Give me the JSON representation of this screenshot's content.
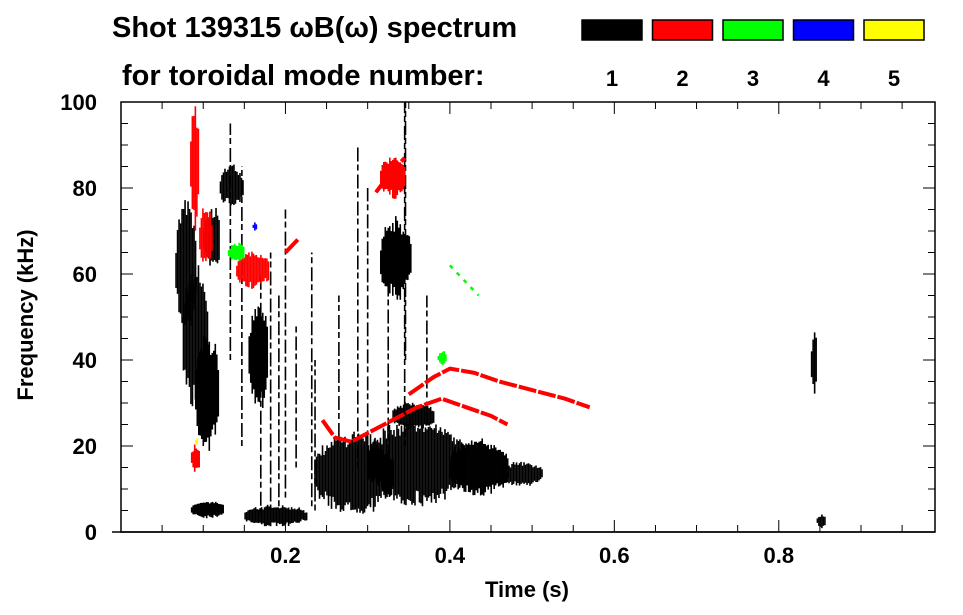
{
  "chart_data": {
    "type": "heatmap",
    "title": "Shot 139315 ωB(ω) spectrum",
    "subtitle": "for toroidal mode number:",
    "xlabel": "Time (s)",
    "ylabel": "Frequency (kHz)",
    "xlim": [
      0,
      0.99
    ],
    "ylim": [
      0,
      100
    ],
    "xticks": [
      0.2,
      0.4,
      0.6,
      0.8
    ],
    "xtick_labels": [
      "0.2",
      "0.4",
      "0.6",
      "0.8"
    ],
    "yticks": [
      0,
      20,
      40,
      60,
      80,
      100
    ],
    "ytick_labels": [
      "0",
      "20",
      "40",
      "60",
      "80",
      "100"
    ],
    "legend": [
      {
        "mode": "1",
        "color": "#000000"
      },
      {
        "mode": "2",
        "color": "#ff0000"
      },
      {
        "mode": "3",
        "color": "#00ff00"
      },
      {
        "mode": "4",
        "color": "#0000ff"
      },
      {
        "mode": "5",
        "color": "#ffff00"
      }
    ],
    "blobs": [
      {
        "mode": 1,
        "t": [
          0.066,
          0.09
        ],
        "f": [
          48,
          76
        ]
      },
      {
        "mode": 1,
        "t": [
          0.075,
          0.105
        ],
        "f": [
          30,
          60
        ]
      },
      {
        "mode": 1,
        "t": [
          0.09,
          0.118
        ],
        "f": [
          20,
          45
        ]
      },
      {
        "mode": 1,
        "t": [
          0.12,
          0.148
        ],
        "f": [
          76,
          85
        ]
      },
      {
        "mode": 1,
        "t": [
          0.1,
          0.12
        ],
        "f": [
          62,
          75
        ]
      },
      {
        "mode": 1,
        "t": [
          0.155,
          0.178
        ],
        "f": [
          30,
          52
        ]
      },
      {
        "mode": 1,
        "t": [
          0.15,
          0.225
        ],
        "f": [
          1.5,
          6
        ]
      },
      {
        "mode": 1,
        "t": [
          0.085,
          0.125
        ],
        "f": [
          3.5,
          7
        ]
      },
      {
        "mode": 1,
        "t": [
          0.235,
          0.33
        ],
        "f": [
          5,
          22
        ]
      },
      {
        "mode": 1,
        "t": [
          0.3,
          0.42
        ],
        "f": [
          7,
          25
        ]
      },
      {
        "mode": 1,
        "t": [
          0.4,
          0.47
        ],
        "f": [
          9,
          21
        ]
      },
      {
        "mode": 1,
        "t": [
          0.46,
          0.512
        ],
        "f": [
          11,
          16
        ]
      },
      {
        "mode": 1,
        "t": [
          0.33,
          0.38
        ],
        "f": [
          24,
          30
        ]
      },
      {
        "mode": 1,
        "t": [
          0.315,
          0.352
        ],
        "f": [
          55,
          72
        ]
      },
      {
        "mode": 1,
        "t": [
          0.839,
          0.846
        ],
        "f": [
          32,
          47
        ]
      },
      {
        "mode": 1,
        "t": [
          0.846,
          0.856
        ],
        "f": [
          1,
          4
        ]
      },
      {
        "mode": 2,
        "t": [
          0.084,
          0.094
        ],
        "f": [
          70,
          100
        ]
      },
      {
        "mode": 2,
        "t": [
          0.095,
          0.11
        ],
        "f": [
          62,
          75
        ]
      },
      {
        "mode": 2,
        "t": [
          0.14,
          0.18
        ],
        "f": [
          57,
          65
        ]
      },
      {
        "mode": 2,
        "t": [
          0.315,
          0.345
        ],
        "f": [
          78,
          87
        ]
      },
      {
        "mode": 2,
        "t": [
          0.085,
          0.095
        ],
        "f": [
          14,
          20
        ]
      },
      {
        "mode": 3,
        "t": [
          0.13,
          0.15
        ],
        "f": [
          63,
          67
        ]
      },
      {
        "mode": 3,
        "t": [
          0.385,
          0.395
        ],
        "f": [
          39,
          42
        ]
      },
      {
        "mode": 4,
        "t": [
          0.16,
          0.164
        ],
        "f": [
          70,
          72
        ]
      },
      {
        "mode": 5,
        "t": [
          0.09,
          0.093
        ],
        "f": [
          20,
          22
        ]
      }
    ],
    "tracks": [
      {
        "mode": 2,
        "points": [
          [
            0.245,
            26
          ],
          [
            0.26,
            22
          ],
          [
            0.28,
            21
          ],
          [
            0.3,
            23
          ],
          [
            0.33,
            26
          ],
          [
            0.36,
            29
          ],
          [
            0.39,
            31
          ],
          [
            0.42,
            29
          ],
          [
            0.45,
            27
          ],
          [
            0.47,
            25
          ]
        ]
      },
      {
        "mode": 2,
        "points": [
          [
            0.35,
            32
          ],
          [
            0.38,
            36
          ],
          [
            0.4,
            38
          ],
          [
            0.43,
            37
          ],
          [
            0.46,
            35
          ],
          [
            0.5,
            33
          ],
          [
            0.54,
            31
          ],
          [
            0.57,
            29
          ]
        ]
      },
      {
        "mode": 2,
        "points": [
          [
            0.31,
            79
          ],
          [
            0.33,
            84
          ],
          [
            0.345,
            87
          ]
        ]
      },
      {
        "mode": 2,
        "points": [
          [
            0.2,
            65
          ],
          [
            0.215,
            68
          ]
        ]
      },
      {
        "mode": 3,
        "points": [
          [
            0.4,
            62
          ],
          [
            0.42,
            58
          ],
          [
            0.435,
            55
          ]
        ]
      }
    ],
    "streaks": [
      {
        "mode": 1,
        "t": 0.133,
        "f": [
          40,
          95
        ]
      },
      {
        "mode": 1,
        "t": 0.147,
        "f": [
          20,
          85
        ]
      },
      {
        "mode": 1,
        "t": 0.17,
        "f": [
          4,
          60
        ]
      },
      {
        "mode": 1,
        "t": 0.182,
        "f": [
          5,
          65
        ]
      },
      {
        "mode": 1,
        "t": 0.192,
        "f": [
          6,
          55
        ]
      },
      {
        "mode": 1,
        "t": 0.2,
        "f": [
          8,
          75
        ]
      },
      {
        "mode": 1,
        "t": 0.213,
        "f": [
          15,
          48
        ]
      },
      {
        "mode": 1,
        "t": 0.232,
        "f": [
          6,
          65
        ]
      },
      {
        "mode": 1,
        "t": 0.236,
        "f": [
          5,
          40
        ]
      },
      {
        "mode": 1,
        "t": 0.265,
        "f": [
          20,
          55
        ]
      },
      {
        "mode": 1,
        "t": 0.288,
        "f": [
          15,
          90
        ]
      },
      {
        "mode": 1,
        "t": 0.3,
        "f": [
          12,
          80
        ]
      },
      {
        "mode": 1,
        "t": 0.325,
        "f": [
          15,
          70
        ]
      },
      {
        "mode": 1,
        "t": 0.345,
        "f": [
          20,
          100
        ]
      },
      {
        "mode": 1,
        "t": 0.346,
        "f": [
          40,
          100
        ]
      },
      {
        "mode": 1,
        "t": 0.372,
        "f": [
          25,
          55
        ]
      }
    ]
  }
}
